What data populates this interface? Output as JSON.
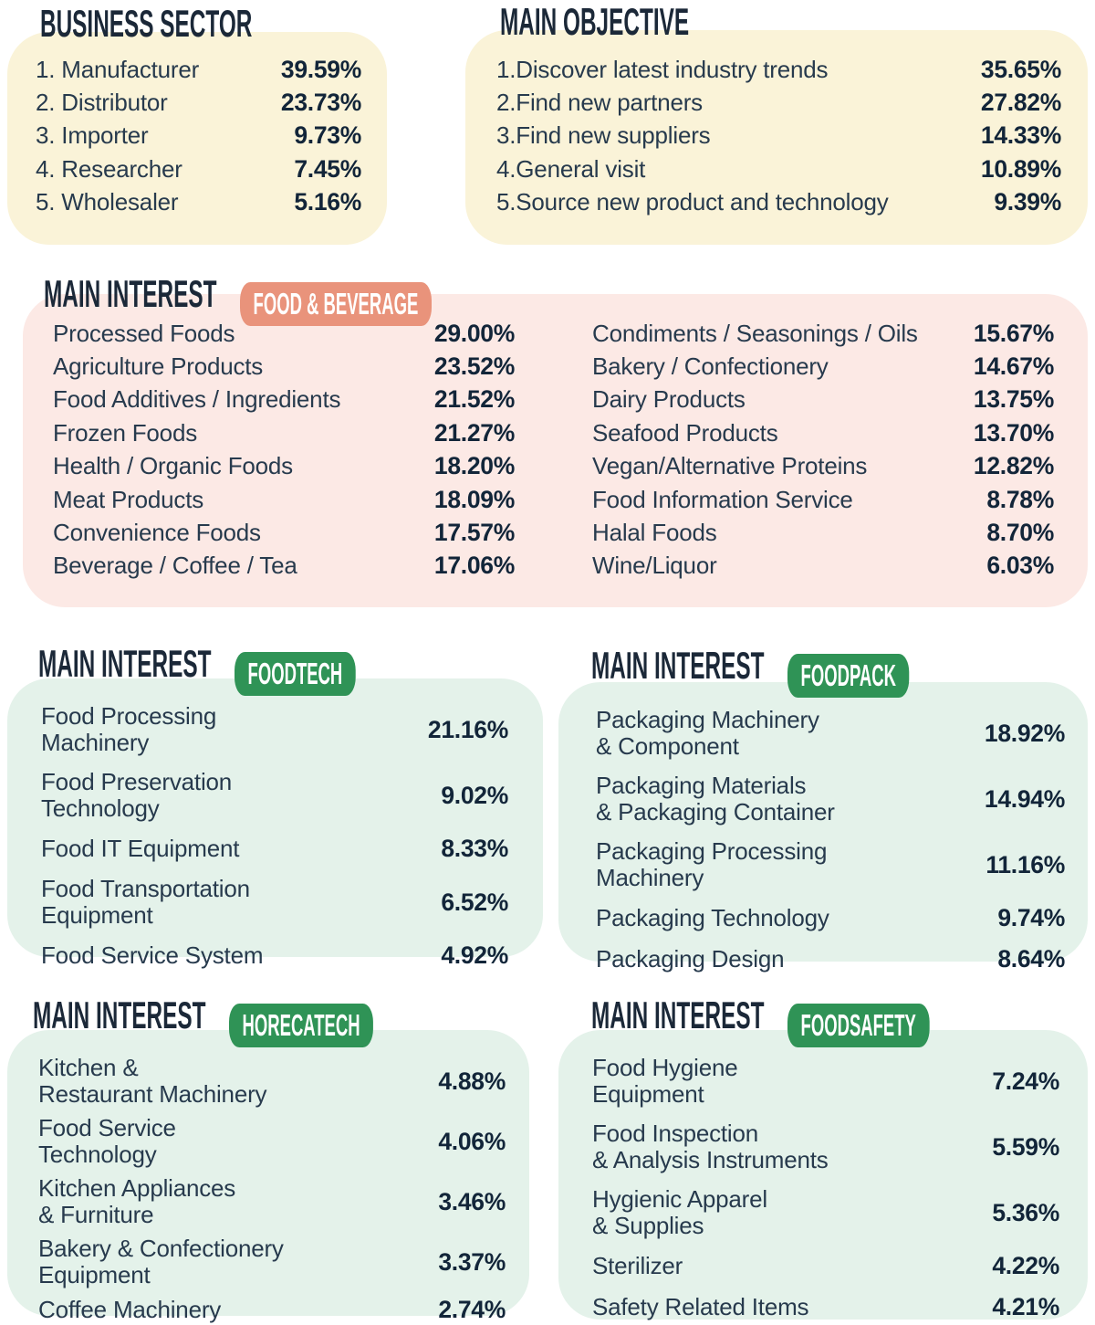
{
  "colors": {
    "cream_panel": "#faf3d8",
    "pink_panel": "#fce9e5",
    "mint_panel": "#e4f2ea",
    "salmon_badge": "#e9937b",
    "green_badge": "#2f9356",
    "navy_text": "#1b2838"
  },
  "chart_data": [
    {
      "type": "table",
      "title": "BUSINESS SECTOR",
      "rows": [
        [
          "1. Manufacturer",
          "39.59%"
        ],
        [
          "2. Distributor",
          "23.73%"
        ],
        [
          "3. Importer",
          "9.73%"
        ],
        [
          "4. Researcher",
          "7.45%"
        ],
        [
          "5. Wholesaler",
          "5.16%"
        ]
      ]
    },
    {
      "type": "table",
      "title": "MAIN OBJECTIVE",
      "rows": [
        [
          "1.Discover latest industry trends",
          "35.65%"
        ],
        [
          "2.Find new partners",
          "27.82%"
        ],
        [
          "3.Find new suppliers",
          "14.33%"
        ],
        [
          "4.General visit",
          "10.89%"
        ],
        [
          "5.Source new product and technology",
          "9.39%"
        ]
      ]
    },
    {
      "type": "table",
      "title": "MAIN INTEREST",
      "badge": "FOOD & BEVERAGE",
      "rows_left": [
        [
          "Processed Foods",
          "29.00%"
        ],
        [
          "Agriculture Products",
          "23.52%"
        ],
        [
          "Food Additives / Ingredients",
          "21.52%"
        ],
        [
          "Frozen Foods",
          "21.27%"
        ],
        [
          "Health / Organic Foods",
          "18.20%"
        ],
        [
          "Meat Products",
          "18.09%"
        ],
        [
          "Convenience Foods",
          "17.57%"
        ],
        [
          "Beverage / Coffee / Tea",
          "17.06%"
        ]
      ],
      "rows_right": [
        [
          "Condiments / Seasonings / Oils",
          "15.67%"
        ],
        [
          "Bakery / Confectionery",
          "14.67%"
        ],
        [
          "Dairy Products",
          "13.75%"
        ],
        [
          "Seafood Products",
          "13.70%"
        ],
        [
          "Vegan/Alternative Proteins",
          "12.82%"
        ],
        [
          "Food Information Service",
          "8.78%"
        ],
        [
          "Halal Foods",
          "8.70%"
        ],
        [
          "Wine/Liquor",
          "6.03%"
        ]
      ]
    },
    {
      "type": "table",
      "title": "MAIN INTEREST",
      "badge": "FOODTECH",
      "rows": [
        [
          "Food Processing\nMachinery",
          "21.16%"
        ],
        [
          "Food Preservation\nTechnology",
          "9.02%"
        ],
        [
          "Food IT Equipment",
          "8.33%"
        ],
        [
          "Food Transportation\nEquipment",
          "6.52%"
        ],
        [
          "Food Service System",
          "4.92%"
        ]
      ]
    },
    {
      "type": "table",
      "title": "MAIN INTEREST",
      "badge": "FOODPACK",
      "rows": [
        [
          "Packaging Machinery\n& Component",
          "18.92%"
        ],
        [
          "Packaging Materials\n& Packaging Container",
          "14.94%"
        ],
        [
          "Packaging Processing\nMachinery",
          "11.16%"
        ],
        [
          "Packaging Technology",
          "9.74%"
        ],
        [
          "Packaging Design",
          "8.64%"
        ]
      ]
    },
    {
      "type": "table",
      "title": "MAIN INTEREST",
      "badge": "HORECATECH",
      "rows": [
        [
          "Kitchen &\nRestaurant Machinery",
          "4.88%"
        ],
        [
          "Food Service\nTechnology",
          "4.06%"
        ],
        [
          "Kitchen Appliances\n& Furniture",
          "3.46%"
        ],
        [
          "Bakery & Confectionery\nEquipment",
          "3.37%"
        ],
        [
          "Coffee Machinery",
          "2.74%"
        ]
      ]
    },
    {
      "type": "table",
      "title": "MAIN INTEREST",
      "badge": "FOODSAFETY",
      "rows": [
        [
          "Food Hygiene\nEquipment",
          "7.24%"
        ],
        [
          "Food Inspection\n& Analysis Instruments",
          "5.59%"
        ],
        [
          "Hygienic Apparel\n& Supplies",
          "5.36%"
        ],
        [
          "Sterilizer",
          "4.22%"
        ],
        [
          "Safety Related Items",
          "4.21%"
        ]
      ]
    }
  ]
}
